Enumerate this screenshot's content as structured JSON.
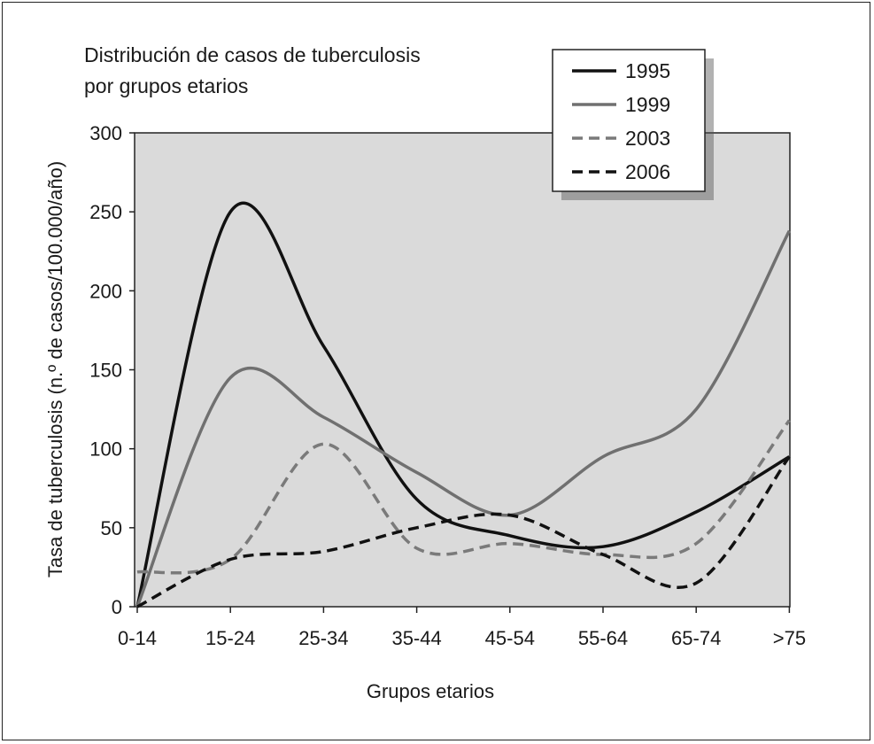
{
  "chart_data": {
    "type": "line",
    "title_lines": [
      "Distribución de casos de tuberculosis",
      "por grupos etarios"
    ],
    "xlabel": "Grupos etarios",
    "ylabel": "Tasa de tuberculosis (n.º de casos/100.000/año)",
    "categories": [
      "0-14",
      "15-24",
      "25-34",
      "35-44",
      "45-54",
      "55-64",
      "65-74",
      ">75"
    ],
    "ylim": [
      0,
      300
    ],
    "yticks": [
      "0",
      "50",
      "100",
      "150",
      "200",
      "250",
      "300"
    ],
    "grid": false,
    "plot_background": "#dadada",
    "legend_position": "top-right",
    "series": [
      {
        "name": "1995",
        "color": "#111111",
        "dash": "solid",
        "values": [
          0,
          250,
          165,
          68,
          45,
          38,
          60,
          95
        ]
      },
      {
        "name": "1999",
        "color": "#707070",
        "dash": "solid",
        "values": [
          0,
          145,
          120,
          85,
          58,
          95,
          125,
          238
        ]
      },
      {
        "name": "2003",
        "color": "#7a7a7a",
        "dash": "dashed",
        "values": [
          22,
          30,
          103,
          37,
          40,
          33,
          40,
          118
        ]
      },
      {
        "name": "2006",
        "color": "#111111",
        "dash": "dashed",
        "values": [
          0,
          30,
          35,
          50,
          58,
          33,
          15,
          95
        ]
      }
    ]
  }
}
